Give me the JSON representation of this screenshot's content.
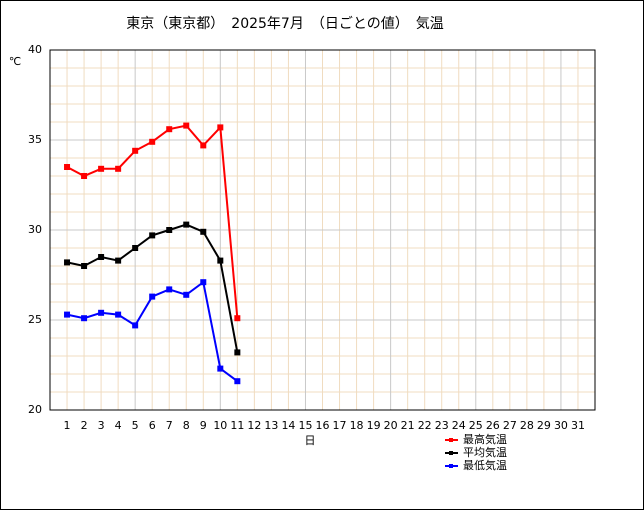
{
  "chart_data": {
    "type": "line",
    "title": "東京（東京都）　2025年7月　（日ごとの値）　気温",
    "y_label": "℃",
    "x_label": "日",
    "x": [
      1,
      2,
      3,
      4,
      5,
      6,
      7,
      8,
      9,
      10,
      11
    ],
    "xlim": [
      0,
      32
    ],
    "xticks": [
      1,
      2,
      3,
      4,
      5,
      6,
      7,
      8,
      9,
      10,
      11,
      12,
      13,
      14,
      15,
      16,
      17,
      18,
      19,
      20,
      21,
      22,
      23,
      24,
      25,
      26,
      27,
      28,
      29,
      30,
      31
    ],
    "ylim": [
      20,
      40
    ],
    "yticks": [
      20,
      25,
      30,
      35,
      40
    ],
    "y_minor_ticks": [
      21,
      22,
      23,
      24,
      26,
      27,
      28,
      29,
      31,
      32,
      33,
      34,
      36,
      37,
      38,
      39
    ],
    "grid": true,
    "series": [
      {
        "name": "最高気温",
        "color": "#ff0000",
        "values": [
          33.5,
          33.0,
          33.4,
          33.4,
          34.4,
          34.9,
          35.6,
          35.8,
          34.7,
          35.7,
          25.1
        ]
      },
      {
        "name": "平均気温",
        "color": "#000000",
        "values": [
          28.2,
          28.0,
          28.5,
          28.3,
          29.0,
          29.7,
          30.0,
          30.3,
          29.9,
          28.3,
          23.2
        ]
      },
      {
        "name": "最低気温",
        "color": "#0000ff",
        "values": [
          25.3,
          25.1,
          25.4,
          25.3,
          24.7,
          26.3,
          26.7,
          26.4,
          27.1,
          22.3,
          21.6
        ]
      }
    ]
  }
}
